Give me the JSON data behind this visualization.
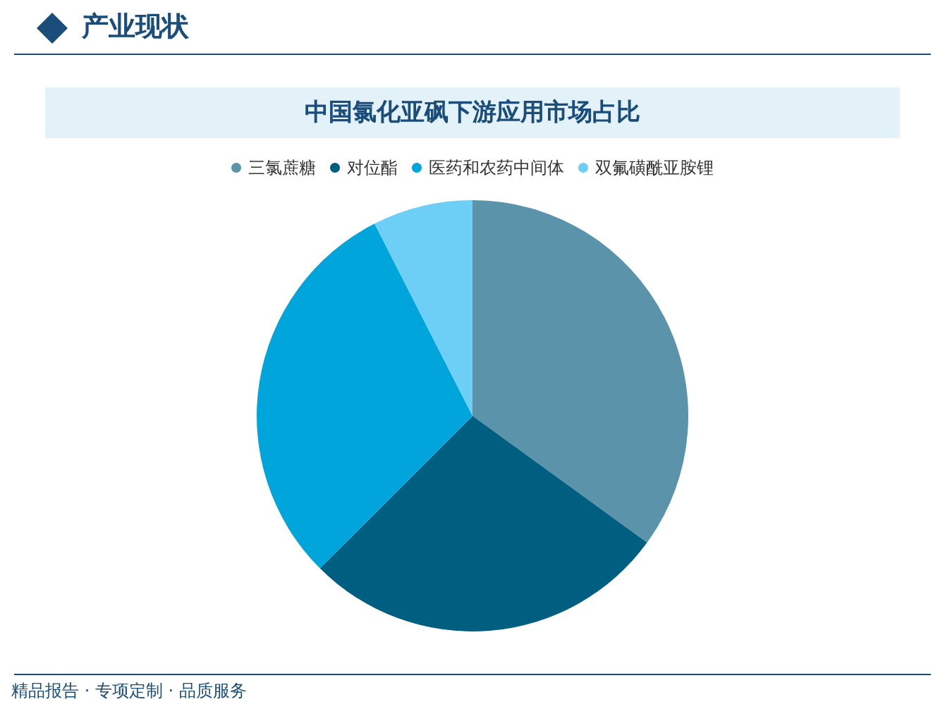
{
  "chart_data": {
    "type": "pie",
    "title": "中国氯化亚砜下游应用市场占比",
    "categories": [
      "三氯蔗糖",
      "对位酯",
      "医药和农药中间体",
      "双氟磺酰亚胺锂"
    ],
    "values": [
      35,
      27.5,
      30,
      7.5
    ],
    "colors": [
      "#5b93aa",
      "#005f80",
      "#00a5dc",
      "#6dcff6"
    ],
    "legend": "top",
    "annotations": [
      "产业现状",
      "精品报告 · 专项定制 · 品质服务"
    ]
  }
}
